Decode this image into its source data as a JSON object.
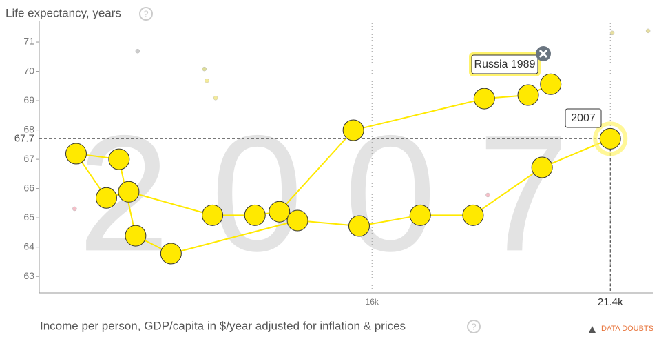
{
  "chart_data": {
    "type": "scatter",
    "title": "Life expectancy, years",
    "xlabel": "Income per person, GDP/capita in $/year adjusted for inflation & prices",
    "note": "DATA DOUBTS",
    "year": "2007",
    "log_x": true,
    "xlim": [
      10660,
      22540
    ],
    "xticks": [
      {
        "value": 16000,
        "label": "16k"
      },
      {
        "value": 21400,
        "label": "21.4k"
      }
    ],
    "ylim": [
      62.44,
      71.73
    ],
    "yticks": [
      63,
      64,
      65,
      66,
      67,
      68,
      69,
      70,
      71
    ],
    "highlight_ytick": 67.7,
    "series": [
      {
        "name": "Russia",
        "label_start": "Russia 1989",
        "color": "#ffe900",
        "x": [
          19900,
          19360,
          18350,
          15640,
          14290,
          13870,
          13170,
          11890,
          11570,
          11150,
          11750,
          11990,
          12520,
          14610,
          15750,
          16970,
          18100,
          19690,
          21400
        ],
        "values": [
          69.56,
          69.19,
          69.07,
          67.99,
          65.21,
          65.09,
          65.09,
          65.89,
          65.68,
          67.19,
          67.0,
          64.39,
          63.78,
          64.91,
          64.72,
          65.09,
          65.09,
          66.72,
          67.7
        ]
      }
    ],
    "background_points": {
      "x": [
        12020,
        13040,
        13080,
        13220,
        11130,
        18430,
        21450,
        22410
      ],
      "values": [
        70.69,
        70.08,
        69.68,
        69.09,
        65.31,
        65.78,
        71.31,
        71.38
      ],
      "colors": [
        "#cccccc",
        "#dddd99",
        "#f3ea9a",
        "#f3ea9a",
        "#f4bfc8",
        "#f4bfc8",
        "#e8e0a0",
        "#e8e0a0"
      ]
    }
  }
}
